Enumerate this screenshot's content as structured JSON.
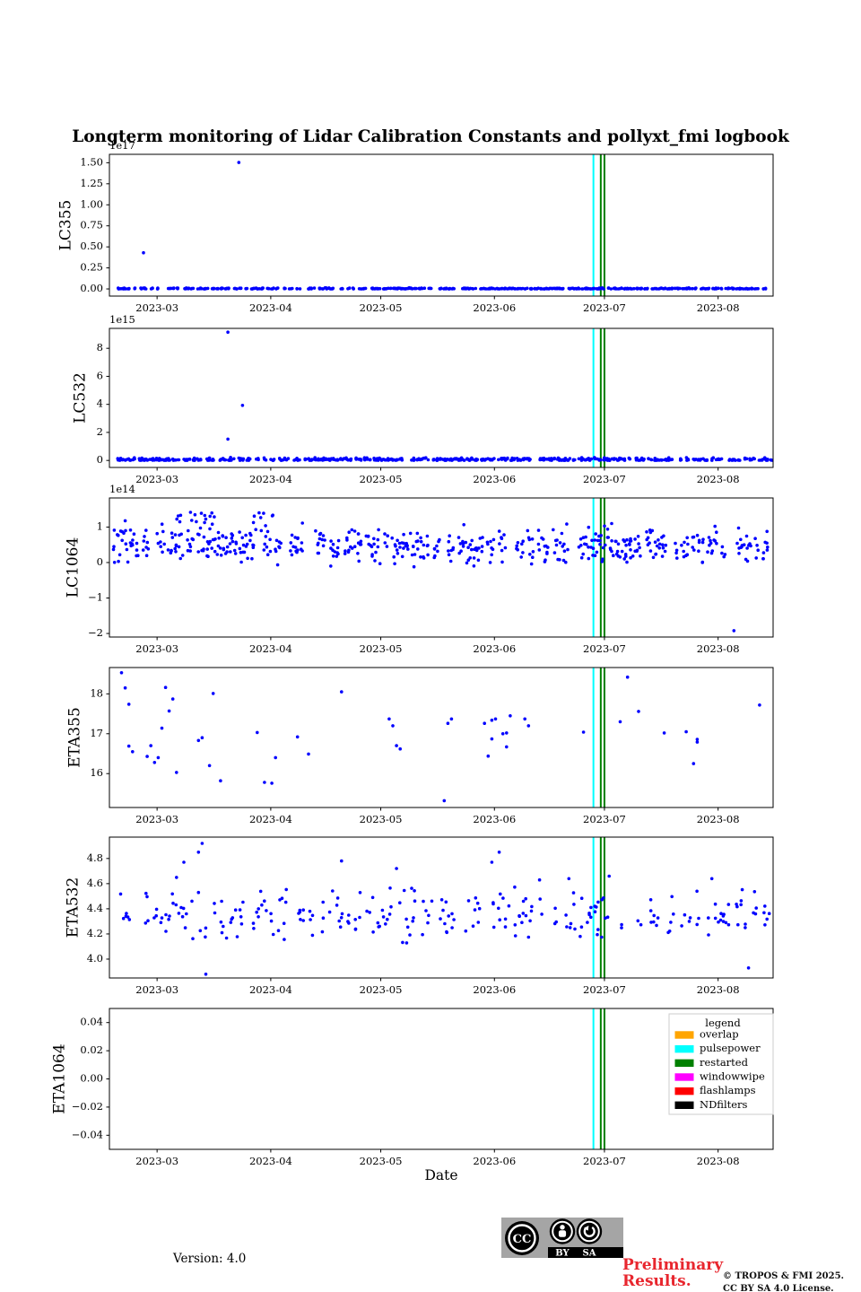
{
  "title": "Longterm monitoring of Lidar Calibration Constants and pollyxt_fmi logbook",
  "chart_data": {
    "type": "scatter",
    "xlabel": "Date",
    "point_color": "#0000ff",
    "seed": 7,
    "x_domain": [
      "2023-02-16",
      "2023-08-16"
    ],
    "x_ticks": [
      {
        "date": "2023-03-01",
        "label": "2023-03"
      },
      {
        "date": "2023-04-01",
        "label": "2023-04"
      },
      {
        "date": "2023-05-01",
        "label": "2023-05"
      },
      {
        "date": "2023-06-01",
        "label": "2023-06"
      },
      {
        "date": "2023-07-01",
        "label": "2023-07"
      },
      {
        "date": "2023-08-01",
        "label": "2023-08"
      }
    ],
    "events": [
      {
        "label": "pulsepower",
        "date": "2023-06-28",
        "color": "#00ffff"
      },
      {
        "label": "restarted",
        "date": "2023-06-30",
        "color": "#008000"
      },
      {
        "label": "restarted",
        "date": "2023-07-01",
        "color": "#008000"
      }
    ],
    "panels": [
      {
        "id": "LC355",
        "ylabel": "LC355",
        "offset_label": "1e17",
        "ylim": [
          -0.085,
          1.6
        ],
        "yticks": [
          {
            "v": 0,
            "label": "0.00"
          },
          {
            "v": 0.25,
            "label": "0.25"
          },
          {
            "v": 0.5,
            "label": "0.50"
          },
          {
            "v": 0.75,
            "label": "0.75"
          },
          {
            "v": 1.0,
            "label": "1.00"
          },
          {
            "v": 1.25,
            "label": "1.25"
          },
          {
            "v": 1.5,
            "label": "1.50"
          }
        ],
        "bands": [
          {
            "from": "2023-02-18",
            "to": "2023-08-15",
            "cov": 0.8,
            "ppd": 3.5,
            "mean": 0.004,
            "std": 0.004,
            "clip": [
              0,
              0.02
            ]
          }
        ],
        "outliers": [
          [
            "2023-02-25",
            0.43
          ],
          [
            "2023-03-23",
            1.503
          ]
        ],
        "points": []
      },
      {
        "id": "LC532",
        "ylabel": "LC532",
        "offset_label": "1e15",
        "ylim": [
          -0.5,
          9.42
        ],
        "yticks": [
          {
            "v": 0,
            "label": "0"
          },
          {
            "v": 2,
            "label": "2"
          },
          {
            "v": 4,
            "label": "4"
          },
          {
            "v": 6,
            "label": "6"
          },
          {
            "v": 8,
            "label": "8"
          }
        ],
        "bands": [
          {
            "from": "2023-02-18",
            "to": "2023-08-15",
            "cov": 0.8,
            "ppd": 3.5,
            "mean": 0.07,
            "std": 0.06,
            "clip": [
              0.005,
              0.3
            ]
          }
        ],
        "outliers": [
          [
            "2023-03-20",
            9.15
          ],
          [
            "2023-03-24",
            3.93
          ],
          [
            "2023-03-20",
            1.52
          ]
        ],
        "points": []
      },
      {
        "id": "LC1064",
        "ylabel": "LC1064",
        "offset_label": "1e14",
        "ylim": [
          -2.1,
          1.82
        ],
        "yticks": [
          {
            "v": -2,
            "label": "−2"
          },
          {
            "v": -1,
            "label": "−1"
          },
          {
            "v": 0,
            "label": "0"
          },
          {
            "v": 1,
            "label": "1"
          }
        ],
        "bands": [
          {
            "from": "2023-02-17",
            "to": "2023-08-14",
            "cov": 0.7,
            "ppd": 4,
            "mean": 0.48,
            "std": 0.25,
            "clip": [
              -0.12,
              1.3
            ]
          },
          {
            "from": "2023-03-06",
            "to": "2023-03-16",
            "cov": 0.6,
            "ppd": 2,
            "mean": 1.28,
            "std": 0.13,
            "clip": [
              1.05,
              1.5
            ]
          },
          {
            "from": "2023-03-27",
            "to": "2023-04-02",
            "cov": 0.6,
            "ppd": 1.5,
            "mean": 1.15,
            "std": 0.15,
            "clip": [
              0.9,
              1.4
            ]
          },
          {
            "from": "2023-06-30",
            "to": "2023-07-09",
            "cov": 0.85,
            "ppd": 2,
            "mean": 0.24,
            "std": 0.12,
            "clip": [
              -0.05,
              0.5
            ]
          }
        ],
        "outliers": [
          [
            "2023-08-05",
            -1.92
          ]
        ],
        "points": []
      },
      {
        "id": "ETA355",
        "ylabel": "ETA355",
        "offset_label": "",
        "ylim": [
          15.15,
          18.66
        ],
        "yticks": [
          {
            "v": 16,
            "label": "16"
          },
          {
            "v": 17,
            "label": "17"
          },
          {
            "v": 18,
            "label": "18"
          }
        ],
        "bands": [],
        "outliers": [],
        "points": [
          [
            "2023-02-19",
            18.53
          ],
          [
            "2023-02-20",
            18.15
          ],
          [
            "2023-02-21",
            17.74
          ],
          [
            "2023-02-21",
            16.69
          ],
          [
            "2023-02-22",
            16.55
          ],
          [
            "2023-02-26",
            16.43
          ],
          [
            "2023-02-27",
            16.7
          ],
          [
            "2023-02-28",
            16.28
          ],
          [
            "2023-03-01",
            16.4
          ],
          [
            "2023-03-02",
            17.14
          ],
          [
            "2023-03-03",
            18.16
          ],
          [
            "2023-03-04",
            17.57
          ],
          [
            "2023-03-05",
            17.87
          ],
          [
            "2023-03-06",
            16.03
          ],
          [
            "2023-03-12",
            16.83
          ],
          [
            "2023-03-13",
            16.9
          ],
          [
            "2023-03-15",
            16.2
          ],
          [
            "2023-03-16",
            18.01
          ],
          [
            "2023-03-18",
            15.82
          ],
          [
            "2023-03-28",
            17.03
          ],
          [
            "2023-03-30",
            15.78
          ],
          [
            "2023-04-01",
            15.76
          ],
          [
            "2023-04-02",
            16.4
          ],
          [
            "2023-04-08",
            16.92
          ],
          [
            "2023-04-11",
            16.49
          ],
          [
            "2023-04-20",
            18.05
          ],
          [
            "2023-05-03",
            17.37
          ],
          [
            "2023-05-04",
            17.2
          ],
          [
            "2023-05-05",
            16.7
          ],
          [
            "2023-05-06",
            16.62
          ],
          [
            "2023-05-18",
            15.32
          ],
          [
            "2023-05-19",
            17.26
          ],
          [
            "2023-05-20",
            17.37
          ],
          [
            "2023-05-29",
            17.26
          ],
          [
            "2023-05-30",
            16.44
          ],
          [
            "2023-05-31",
            16.87
          ],
          [
            "2023-05-31",
            17.34
          ],
          [
            "2023-06-01",
            17.37
          ],
          [
            "2023-06-03",
            17.0
          ],
          [
            "2023-06-04",
            17.02
          ],
          [
            "2023-06-04",
            16.67
          ],
          [
            "2023-06-05",
            17.45
          ],
          [
            "2023-06-09",
            17.37
          ],
          [
            "2023-06-10",
            17.2
          ],
          [
            "2023-06-25",
            17.04
          ],
          [
            "2023-07-05",
            17.3
          ],
          [
            "2023-07-07",
            18.42
          ],
          [
            "2023-07-10",
            17.56
          ],
          [
            "2023-07-17",
            17.02
          ],
          [
            "2023-07-23",
            17.05
          ],
          [
            "2023-07-25",
            16.25
          ],
          [
            "2023-07-26",
            16.86
          ],
          [
            "2023-07-26",
            16.79
          ],
          [
            "2023-08-12",
            17.72
          ]
        ]
      },
      {
        "id": "ETA532",
        "ylabel": "ETA532",
        "offset_label": "",
        "ylim": [
          3.85,
          4.97
        ],
        "yticks": [
          {
            "v": 4.0,
            "label": "4.0"
          },
          {
            "v": 4.2,
            "label": "4.2"
          },
          {
            "v": 4.4,
            "label": "4.4"
          },
          {
            "v": 4.6,
            "label": "4.6"
          },
          {
            "v": 4.8,
            "label": "4.8"
          }
        ],
        "bands": [
          {
            "from": "2023-02-17",
            "to": "2023-08-14",
            "cov": 0.62,
            "ppd": 2.4,
            "mean": 4.36,
            "std": 0.09,
            "clip": [
              4.07,
              4.58
            ]
          }
        ],
        "outliers": [
          [
            "2023-03-06",
            4.65
          ],
          [
            "2023-03-08",
            4.77
          ],
          [
            "2023-03-12",
            4.85
          ],
          [
            "2023-03-13",
            4.92
          ],
          [
            "2023-03-14",
            3.88
          ],
          [
            "2023-04-20",
            4.78
          ],
          [
            "2023-05-05",
            4.72
          ],
          [
            "2023-05-31",
            4.77
          ],
          [
            "2023-06-02",
            4.85
          ],
          [
            "2023-06-13",
            4.63
          ],
          [
            "2023-06-21",
            4.64
          ],
          [
            "2023-07-02",
            4.66
          ],
          [
            "2023-07-30",
            4.64
          ],
          [
            "2023-08-09",
            3.93
          ]
        ],
        "points": []
      },
      {
        "id": "ETA1064",
        "ylabel": "ETA1064",
        "offset_label": "",
        "ylim": [
          -0.05,
          0.05
        ],
        "yticks": [
          {
            "v": -0.04,
            "label": "−0.04"
          },
          {
            "v": -0.02,
            "label": "−0.02"
          },
          {
            "v": 0,
            "label": "0.00"
          },
          {
            "v": 0.02,
            "label": "0.02"
          },
          {
            "v": 0.04,
            "label": "0.04"
          }
        ],
        "bands": [],
        "outliers": [],
        "points": []
      }
    ],
    "legend": {
      "title": "legend",
      "entries": [
        {
          "label": "overlap",
          "color": "#ffa500"
        },
        {
          "label": "pulsepower",
          "color": "#00ffff"
        },
        {
          "label": "restarted",
          "color": "#008000"
        },
        {
          "label": "windowwipe",
          "color": "#ff00ff"
        },
        {
          "label": "flashlamps",
          "color": "#ff0000"
        },
        {
          "label": "NDfilters",
          "color": "#000000"
        }
      ]
    }
  },
  "footer": {
    "version": "Version: 4.0",
    "preliminary": "Preliminary Results.",
    "copyright_line1": "© TROPOS & FMI 2025.",
    "copyright_line2": "CC BY SA 4.0 License.",
    "cc_badge": {
      "cc_text": "CC",
      "by_label": "BY",
      "sa_label": "SA"
    }
  }
}
